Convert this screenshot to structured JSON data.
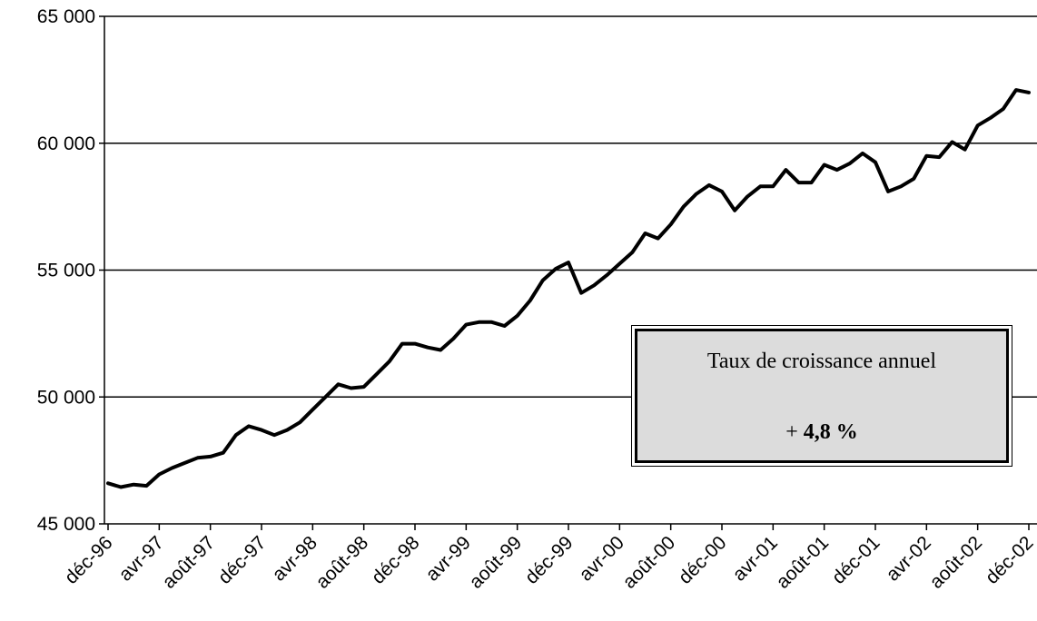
{
  "chart_data": {
    "type": "line",
    "title": "",
    "xlabel": "",
    "ylabel": "",
    "ylim": [
      45000,
      65000
    ],
    "yticks": [
      45000,
      50000,
      55000,
      60000,
      65000
    ],
    "ytick_labels": [
      "45 000",
      "50 000",
      "55 000",
      "60 000",
      "65 000"
    ],
    "grid": true,
    "x_tick_labels": [
      "déc-96",
      "avr-97",
      "août-97",
      "déc-97",
      "avr-98",
      "août-98",
      "déc-98",
      "avr-99",
      "août-99",
      "déc-99",
      "avr-00",
      "août-00",
      "déc-00",
      "avr-01",
      "août-01",
      "déc-01",
      "avr-02",
      "août-02",
      "déc-02"
    ],
    "x_tick_step_months": 4,
    "series": [
      {
        "values": [
          46600,
          46450,
          46550,
          46500,
          46950,
          47200,
          47400,
          47600,
          47650,
          47800,
          48500,
          48850,
          48700,
          48500,
          48700,
          49000,
          49500,
          50000,
          50500,
          50350,
          50400,
          50900,
          51400,
          52100,
          52100,
          51950,
          51850,
          52300,
          52850,
          52950,
          52950,
          52800,
          53200,
          53800,
          54600,
          55050,
          55300,
          54100,
          54400,
          54800,
          55250,
          55700,
          56450,
          56250,
          56800,
          57500,
          58000,
          58350,
          58100,
          57350,
          57900,
          58300,
          58300,
          58950,
          58450,
          58450,
          59150,
          58950,
          59200,
          59600,
          59250,
          58100,
          58300,
          58600,
          59500,
          59450,
          60050,
          59750,
          60700,
          61000,
          61350,
          62100,
          62000
        ]
      }
    ],
    "annotation": {
      "title": "Taux de croissance annuel",
      "value_prefix": "+",
      "value": "4,8 %"
    }
  }
}
